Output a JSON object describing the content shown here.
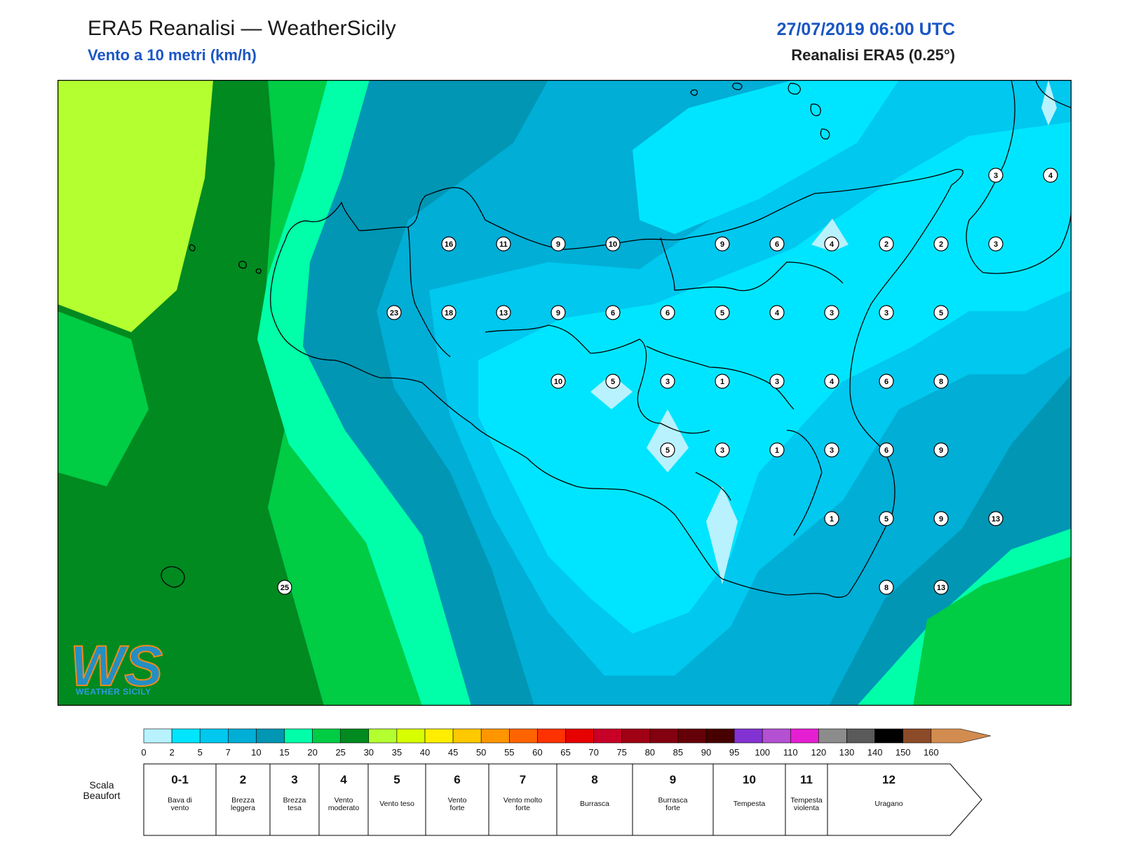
{
  "header": {
    "title": "ERA5 Reanalisi — WeatherSicily",
    "subtitle": "Vento a 10 metri (km/h)",
    "datetime": "27/07/2019 06:00 UTC",
    "model": "Reanalisi ERA5 (0.25°)"
  },
  "map": {
    "colors": {
      "c0_2": "#b8f2ff",
      "c2_5": "#00e5ff",
      "c5_7": "#00c8ef",
      "c7_10": "#00aed6",
      "c10_15": "#0096b4",
      "c15_20": "#00ffa8",
      "c20_25": "#00cc44",
      "c25_30": "#008a20",
      "c30_35": "#b4ff30"
    },
    "labels": [
      {
        "value": "16",
        "lon": 12.25,
        "lat": 38.5
      },
      {
        "value": "11",
        "lon": 12.75,
        "lat": 38.5
      },
      {
        "value": "9",
        "lon": 13.25,
        "lat": 38.5
      },
      {
        "value": "10",
        "lon": 13.75,
        "lat": 38.5
      },
      {
        "value": "9",
        "lon": 14.75,
        "lat": 38.5
      },
      {
        "value": "6",
        "lon": 15.25,
        "lat": 38.5
      },
      {
        "value": "4",
        "lon": 15.75,
        "lat": 38.5
      },
      {
        "value": "2",
        "lon": 16.25,
        "lat": 38.5
      },
      {
        "value": "2",
        "lon": 16.75,
        "lat": 38.5
      },
      {
        "value": "3",
        "lon": 17.25,
        "lat": 38.5
      },
      {
        "value": "3",
        "lon": 17.25,
        "lat": 39.0
      },
      {
        "value": "4",
        "lon": 17.75,
        "lat": 39.0
      },
      {
        "value": "23",
        "lon": 11.75,
        "lat": 38.0
      },
      {
        "value": "18",
        "lon": 12.25,
        "lat": 38.0
      },
      {
        "value": "13",
        "lon": 12.75,
        "lat": 38.0
      },
      {
        "value": "9",
        "lon": 13.25,
        "lat": 38.0
      },
      {
        "value": "6",
        "lon": 13.75,
        "lat": 38.0
      },
      {
        "value": "6",
        "lon": 14.25,
        "lat": 38.0
      },
      {
        "value": "5",
        "lon": 14.75,
        "lat": 38.0
      },
      {
        "value": "4",
        "lon": 15.25,
        "lat": 38.0
      },
      {
        "value": "3",
        "lon": 15.75,
        "lat": 38.0
      },
      {
        "value": "3",
        "lon": 16.25,
        "lat": 38.0
      },
      {
        "value": "5",
        "lon": 16.75,
        "lat": 38.0
      },
      {
        "value": "10",
        "lon": 13.25,
        "lat": 37.5
      },
      {
        "value": "5",
        "lon": 13.75,
        "lat": 37.5
      },
      {
        "value": "3",
        "lon": 14.25,
        "lat": 37.5
      },
      {
        "value": "1",
        "lon": 14.75,
        "lat": 37.5
      },
      {
        "value": "3",
        "lon": 15.25,
        "lat": 37.5
      },
      {
        "value": "4",
        "lon": 15.75,
        "lat": 37.5
      },
      {
        "value": "6",
        "lon": 16.25,
        "lat": 37.5
      },
      {
        "value": "8",
        "lon": 16.75,
        "lat": 37.5
      },
      {
        "value": "5",
        "lon": 14.25,
        "lat": 37.0
      },
      {
        "value": "3",
        "lon": 14.75,
        "lat": 37.0
      },
      {
        "value": "1",
        "lon": 15.25,
        "lat": 37.0
      },
      {
        "value": "3",
        "lon": 15.75,
        "lat": 37.0
      },
      {
        "value": "6",
        "lon": 16.25,
        "lat": 37.0
      },
      {
        "value": "9",
        "lon": 16.75,
        "lat": 37.0
      },
      {
        "value": "1",
        "lon": 15.75,
        "lat": 36.5
      },
      {
        "value": "5",
        "lon": 16.25,
        "lat": 36.5
      },
      {
        "value": "9",
        "lon": 16.75,
        "lat": 36.5
      },
      {
        "value": "13",
        "lon": 17.25,
        "lat": 36.5
      },
      {
        "value": "8",
        "lon": 16.25,
        "lat": 36.0
      },
      {
        "value": "13",
        "lon": 16.75,
        "lat": 36.0
      },
      {
        "value": "25",
        "lon": 10.75,
        "lat": 36.0
      }
    ]
  },
  "colorbar": {
    "ticks": [
      "0",
      "2",
      "5",
      "7",
      "10",
      "15",
      "20",
      "25",
      "30",
      "35",
      "40",
      "45",
      "50",
      "55",
      "60",
      "65",
      "70",
      "75",
      "80",
      "85",
      "90",
      "95",
      "100",
      "110",
      "120",
      "130",
      "140",
      "150",
      "160"
    ],
    "colors": [
      "#b8f2ff",
      "#00e5ff",
      "#00c8ef",
      "#00aed6",
      "#0096b4",
      "#00ffa8",
      "#00cc44",
      "#008a20",
      "#b4ff30",
      "#d8ff00",
      "#ffee00",
      "#ffc800",
      "#ff9600",
      "#ff6400",
      "#ff3200",
      "#e60000",
      "#c80028",
      "#a00014",
      "#820010",
      "#640008",
      "#460000",
      "#8232d2",
      "#b450d2",
      "#e61ed2",
      "#8c8c8c",
      "#5a5a5a",
      "#000000",
      "#8c4b28",
      "#d28c50"
    ]
  },
  "beaufort": {
    "title_line1": "Scala",
    "title_line2": "Beaufort",
    "classes": [
      {
        "num": "0-1",
        "desc1": "Bava di",
        "desc2": "vento"
      },
      {
        "num": "2",
        "desc1": "Brezza",
        "desc2": "leggera"
      },
      {
        "num": "3",
        "desc1": "Brezza",
        "desc2": "tesa"
      },
      {
        "num": "4",
        "desc1": "Vento",
        "desc2": "moderato"
      },
      {
        "num": "5",
        "desc1": "Vento teso",
        "desc2": ""
      },
      {
        "num": "6",
        "desc1": "Vento",
        "desc2": "forte"
      },
      {
        "num": "7",
        "desc1": "Vento molto",
        "desc2": "forte"
      },
      {
        "num": "8",
        "desc1": "Burrasca",
        "desc2": ""
      },
      {
        "num": "9",
        "desc1": "Burrasca",
        "desc2": "forte"
      },
      {
        "num": "10",
        "desc1": "Tempesta",
        "desc2": ""
      },
      {
        "num": "11",
        "desc1": "Tempesta",
        "desc2": "violenta"
      },
      {
        "num": "12",
        "desc1": "Uragano",
        "desc2": ""
      }
    ]
  },
  "logo": {
    "text": "WS",
    "caption": "WEATHER SICILY"
  }
}
